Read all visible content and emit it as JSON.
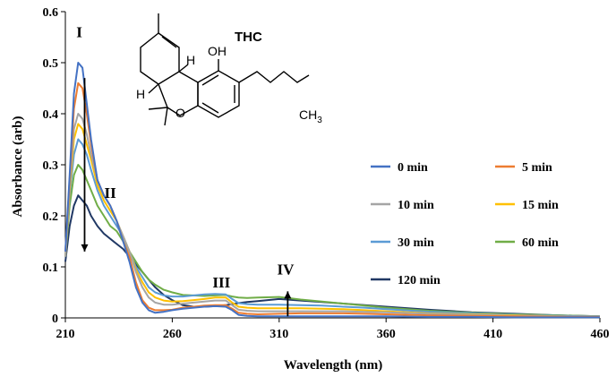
{
  "chart_data": {
    "type": "line",
    "title": "",
    "xlabel": "Wavelength (nm)",
    "ylabel": "Absorbance (arb)",
    "xlim": [
      210,
      460
    ],
    "ylim": [
      0,
      0.6
    ],
    "xticks": [
      "210",
      "260",
      "310",
      "360",
      "410",
      "460"
    ],
    "yticks": [
      "0",
      "0.1",
      "0.2",
      "0.3",
      "0.4",
      "0.5",
      "0.6"
    ],
    "grid": false,
    "legend_position": "center-right",
    "series": [
      {
        "name": "0 min",
        "color": "#4472C4",
        "x": [
          210,
          212,
          214,
          216,
          218,
          220,
          222,
          225,
          228,
          231,
          234,
          237,
          240,
          243,
          246,
          249,
          252,
          256,
          260,
          265,
          270,
          275,
          280,
          285,
          288,
          291,
          295,
          300,
          310,
          320,
          330,
          340,
          350,
          360,
          380,
          400,
          420,
          440,
          460
        ],
        "y": [
          0.13,
          0.28,
          0.44,
          0.5,
          0.49,
          0.42,
          0.35,
          0.27,
          0.24,
          0.22,
          0.19,
          0.15,
          0.11,
          0.06,
          0.03,
          0.015,
          0.01,
          0.012,
          0.015,
          0.018,
          0.02,
          0.022,
          0.023,
          0.022,
          0.015,
          0.006,
          0.004,
          0.003,
          0.003,
          0.003,
          0.003,
          0.003,
          0.003,
          0.003,
          0.002,
          0.002,
          0.001,
          0.001,
          0.001
        ]
      },
      {
        "name": "5 min",
        "color": "#ED7D31",
        "x": [
          210,
          212,
          214,
          216,
          218,
          220,
          222,
          225,
          228,
          231,
          234,
          237,
          240,
          243,
          246,
          249,
          252,
          256,
          260,
          265,
          270,
          275,
          280,
          285,
          288,
          291,
          295,
          300,
          310,
          320,
          330,
          340,
          350,
          360,
          380,
          400,
          420,
          440,
          460
        ],
        "y": [
          0.13,
          0.27,
          0.41,
          0.46,
          0.45,
          0.4,
          0.34,
          0.27,
          0.24,
          0.22,
          0.19,
          0.15,
          0.12,
          0.07,
          0.035,
          0.02,
          0.015,
          0.015,
          0.016,
          0.02,
          0.022,
          0.024,
          0.025,
          0.025,
          0.018,
          0.01,
          0.008,
          0.007,
          0.008,
          0.009,
          0.009,
          0.009,
          0.008,
          0.007,
          0.005,
          0.004,
          0.003,
          0.002,
          0.002
        ]
      },
      {
        "name": "10 min",
        "color": "#A5A5A5",
        "x": [
          210,
          212,
          214,
          216,
          218,
          220,
          222,
          225,
          228,
          231,
          234,
          237,
          240,
          243,
          246,
          249,
          252,
          256,
          260,
          265,
          270,
          275,
          280,
          285,
          288,
          291,
          295,
          300,
          310,
          320,
          330,
          340,
          350,
          360,
          380,
          400,
          420,
          440,
          460
        ],
        "y": [
          0.12,
          0.26,
          0.37,
          0.4,
          0.39,
          0.36,
          0.32,
          0.27,
          0.24,
          0.22,
          0.19,
          0.16,
          0.13,
          0.09,
          0.06,
          0.04,
          0.03,
          0.026,
          0.026,
          0.028,
          0.03,
          0.032,
          0.034,
          0.034,
          0.025,
          0.016,
          0.014,
          0.013,
          0.013,
          0.013,
          0.013,
          0.013,
          0.012,
          0.011,
          0.008,
          0.006,
          0.004,
          0.003,
          0.002
        ]
      },
      {
        "name": "15 min",
        "color": "#FFC000",
        "x": [
          210,
          212,
          214,
          216,
          218,
          220,
          222,
          225,
          228,
          231,
          234,
          237,
          240,
          243,
          246,
          249,
          252,
          256,
          260,
          265,
          270,
          275,
          280,
          285,
          288,
          291,
          295,
          300,
          310,
          320,
          330,
          340,
          350,
          360,
          380,
          400,
          420,
          440,
          460
        ],
        "y": [
          0.12,
          0.25,
          0.35,
          0.38,
          0.37,
          0.34,
          0.31,
          0.26,
          0.23,
          0.21,
          0.19,
          0.16,
          0.13,
          0.095,
          0.07,
          0.05,
          0.04,
          0.034,
          0.032,
          0.033,
          0.035,
          0.037,
          0.04,
          0.04,
          0.03,
          0.022,
          0.02,
          0.019,
          0.019,
          0.019,
          0.018,
          0.017,
          0.015,
          0.013,
          0.009,
          0.007,
          0.005,
          0.003,
          0.002
        ]
      },
      {
        "name": "30 min",
        "color": "#5B9BD5",
        "x": [
          210,
          212,
          214,
          216,
          218,
          220,
          222,
          225,
          228,
          231,
          234,
          237,
          240,
          243,
          246,
          249,
          252,
          256,
          260,
          265,
          270,
          275,
          280,
          285,
          288,
          291,
          295,
          300,
          310,
          320,
          330,
          340,
          350,
          360,
          380,
          400,
          420,
          440,
          460
        ],
        "y": [
          0.12,
          0.24,
          0.32,
          0.35,
          0.34,
          0.32,
          0.29,
          0.25,
          0.22,
          0.2,
          0.18,
          0.16,
          0.13,
          0.1,
          0.08,
          0.06,
          0.05,
          0.044,
          0.042,
          0.042,
          0.044,
          0.046,
          0.047,
          0.046,
          0.037,
          0.029,
          0.027,
          0.026,
          0.026,
          0.025,
          0.024,
          0.022,
          0.02,
          0.017,
          0.012,
          0.009,
          0.006,
          0.004,
          0.003
        ]
      },
      {
        "name": "60 min",
        "color": "#70AD47",
        "x": [
          210,
          212,
          214,
          216,
          218,
          220,
          222,
          225,
          228,
          231,
          234,
          237,
          240,
          243,
          246,
          249,
          252,
          256,
          260,
          265,
          270,
          275,
          280,
          285,
          288,
          291,
          295,
          300,
          310,
          320,
          330,
          340,
          350,
          360,
          380,
          400,
          420,
          440,
          460
        ],
        "y": [
          0.12,
          0.22,
          0.28,
          0.3,
          0.29,
          0.27,
          0.25,
          0.22,
          0.2,
          0.18,
          0.17,
          0.15,
          0.13,
          0.11,
          0.09,
          0.075,
          0.065,
          0.055,
          0.05,
          0.045,
          0.044,
          0.043,
          0.044,
          0.045,
          0.042,
          0.04,
          0.039,
          0.04,
          0.041,
          0.036,
          0.032,
          0.028,
          0.024,
          0.02,
          0.014,
          0.01,
          0.007,
          0.005,
          0.003
        ]
      },
      {
        "name": "120 min",
        "color": "#203864",
        "x": [
          210,
          212,
          214,
          216,
          218,
          220,
          222,
          225,
          228,
          231,
          234,
          237,
          240,
          243,
          246,
          249,
          252,
          256,
          260,
          265,
          270,
          275,
          280,
          285,
          288,
          291,
          295,
          300,
          310,
          320,
          330,
          340,
          350,
          360,
          380,
          400,
          420,
          440,
          460
        ],
        "y": [
          0.11,
          0.18,
          0.22,
          0.24,
          0.23,
          0.22,
          0.2,
          0.18,
          0.165,
          0.155,
          0.145,
          0.135,
          0.12,
          0.105,
          0.09,
          0.075,
          0.06,
          0.045,
          0.035,
          0.025,
          0.022,
          0.022,
          0.023,
          0.025,
          0.027,
          0.029,
          0.031,
          0.033,
          0.037,
          0.034,
          0.031,
          0.028,
          0.025,
          0.022,
          0.016,
          0.011,
          0.008,
          0.005,
          0.003
        ]
      }
    ],
    "annotations": [
      {
        "text": "I",
        "x": 216.5,
        "y": 0.55
      },
      {
        "text": "II",
        "x": 231,
        "y": 0.235
      },
      {
        "text": "III",
        "x": 283,
        "y": 0.06
      },
      {
        "text": "IV",
        "x": 313,
        "y": 0.085
      }
    ],
    "arrows": [
      {
        "direction": "down",
        "x": 219,
        "from": 0.47,
        "to": 0.13
      },
      {
        "direction": "up",
        "x": 314,
        "from": 0.003,
        "to": 0.052
      }
    ]
  },
  "molecule": {
    "title": "THC",
    "atoms": {
      "oh": "OH",
      "h_top": "H",
      "h_left": "H",
      "o_ring": "O",
      "ch3_main": "CH",
      "ch3_sub": "3"
    }
  }
}
